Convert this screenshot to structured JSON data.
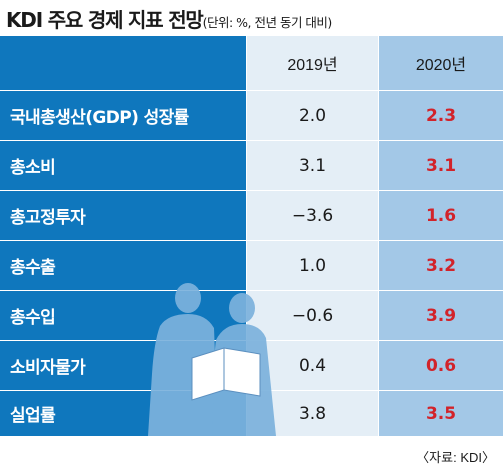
{
  "title": {
    "main": "KDI 주요 경제 지표 전망",
    "unit": "(단위: %, 전년 동기 대비)"
  },
  "columns": [
    "2019년",
    "2020년"
  ],
  "rows": [
    {
      "label": "국내총생산(GDP) 성장률",
      "y2019": "2.0",
      "y2020": "2.3"
    },
    {
      "label": "총소비",
      "y2019": "3.1",
      "y2020": "3.1"
    },
    {
      "label": "총고정투자",
      "y2019": "−3.6",
      "y2020": "1.6"
    },
    {
      "label": "총수출",
      "y2019": "1.0",
      "y2020": "3.2"
    },
    {
      "label": "총수입",
      "y2019": "−0.6",
      "y2020": "3.9"
    },
    {
      "label": "소비자물가",
      "y2019": "0.4",
      "y2020": "0.6"
    },
    {
      "label": "실업률",
      "y2019": "3.8",
      "y2020": "3.5"
    }
  ],
  "source": "〈자료: KDI〉",
  "colors": {
    "label_bg": "#0f77bd",
    "col2019_bg": "#e4eef6",
    "col2020_bg": "#a3c8e7",
    "accent_red": "#d2232a",
    "silhouette": "#7cb2dd"
  }
}
